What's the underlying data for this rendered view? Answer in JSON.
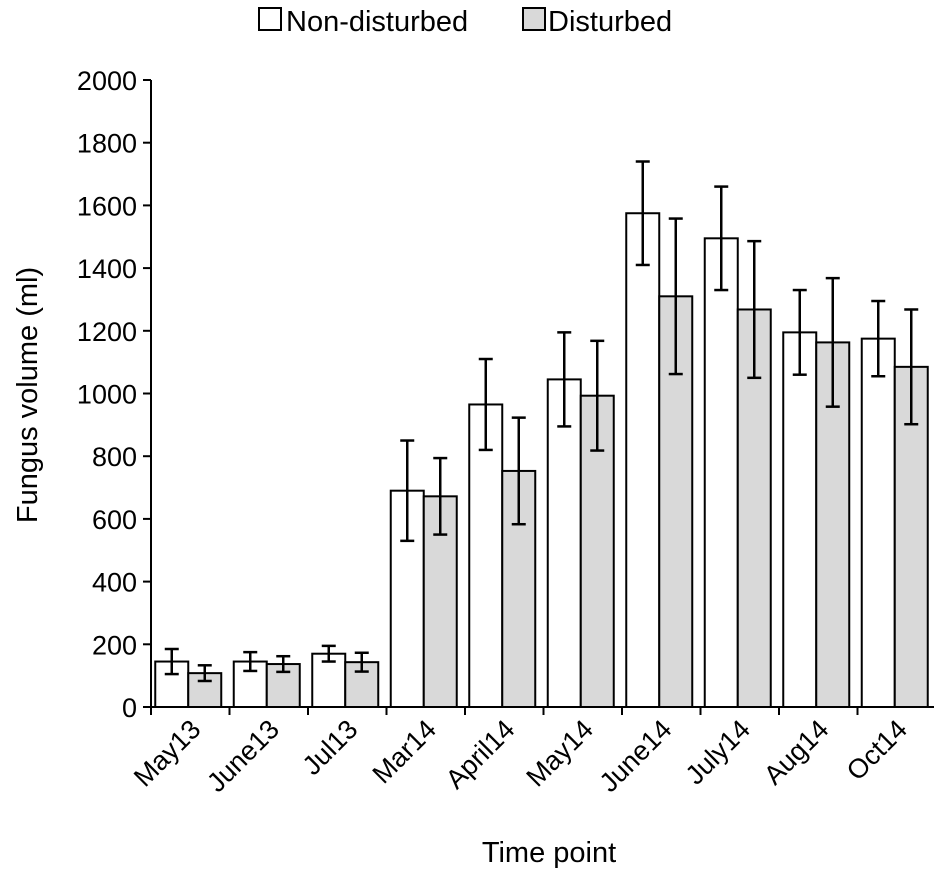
{
  "chart_data": {
    "type": "bar",
    "xlabel": "Time point",
    "ylabel": "Fungus volume (ml)",
    "ylim": [
      0,
      2000
    ],
    "ytick_step": 200,
    "yticks": [
      "0",
      "200",
      "400",
      "600",
      "800",
      "1000",
      "1200",
      "1400",
      "1600",
      "1800",
      "2000"
    ],
    "categories": [
      "May13",
      "June13",
      "Jul13",
      "Mar14",
      "April14",
      "May14",
      "June14",
      "July14",
      "Aug14",
      "Oct14"
    ],
    "series": [
      {
        "name": "Non-disturbed",
        "color": "#ffffff",
        "values": [
          145,
          145,
          170,
          690,
          965,
          1045,
          1575,
          1495,
          1195,
          1175
        ],
        "errors": [
          40,
          30,
          25,
          160,
          145,
          150,
          165,
          165,
          135,
          120
        ]
      },
      {
        "name": "Disturbed",
        "color": "#d9d9d9",
        "values": [
          108,
          137,
          143,
          672,
          753,
          993,
          1310,
          1268,
          1163,
          1085
        ],
        "errors": [
          25,
          25,
          30,
          122,
          170,
          175,
          248,
          218,
          205,
          183
        ]
      }
    ],
    "legend_position": "top-center",
    "grid": false
  }
}
